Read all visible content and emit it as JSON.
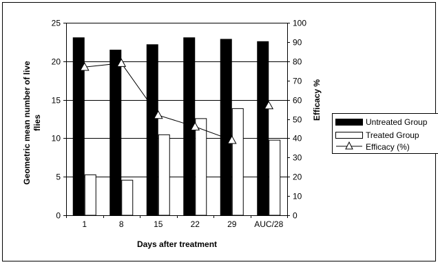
{
  "chart_data": {
    "type": "bar",
    "title": "",
    "xlabel": "Days after treatment",
    "ylabel": "Geometric mean number of live flies",
    "ylabel_lines": [
      "Geometric mean number of live",
      "flies"
    ],
    "y2label": "Efficacy %",
    "categories": [
      "1",
      "8",
      "15",
      "22",
      "29",
      "AUC/28"
    ],
    "ylim": [
      0,
      25
    ],
    "yticks": [
      "0",
      "5",
      "10",
      "15",
      "20",
      "25"
    ],
    "y2lim": [
      0,
      100
    ],
    "y2ticks": [
      "0",
      "10",
      "20",
      "30",
      "40",
      "50",
      "60",
      "70",
      "80",
      "90",
      "100"
    ],
    "grid": "horizontal",
    "legend_position": "right",
    "series": [
      {
        "name": "Untreated Group",
        "kind": "bar",
        "axis": "left",
        "color": "#000000",
        "values": [
          23.1,
          21.5,
          22.2,
          23.1,
          22.9,
          22.6
        ]
      },
      {
        "name": "Treated Group",
        "kind": "bar",
        "axis": "left",
        "color": "#ffffff",
        "values": [
          5.3,
          4.6,
          10.5,
          12.6,
          13.9,
          9.8
        ]
      },
      {
        "name": "Efficacy (%)",
        "kind": "line",
        "axis": "right",
        "color": "#000000",
        "marker": "triangle",
        "values": [
          77,
          79,
          52,
          46,
          39,
          57
        ],
        "connected_to_index": 4
      }
    ]
  }
}
